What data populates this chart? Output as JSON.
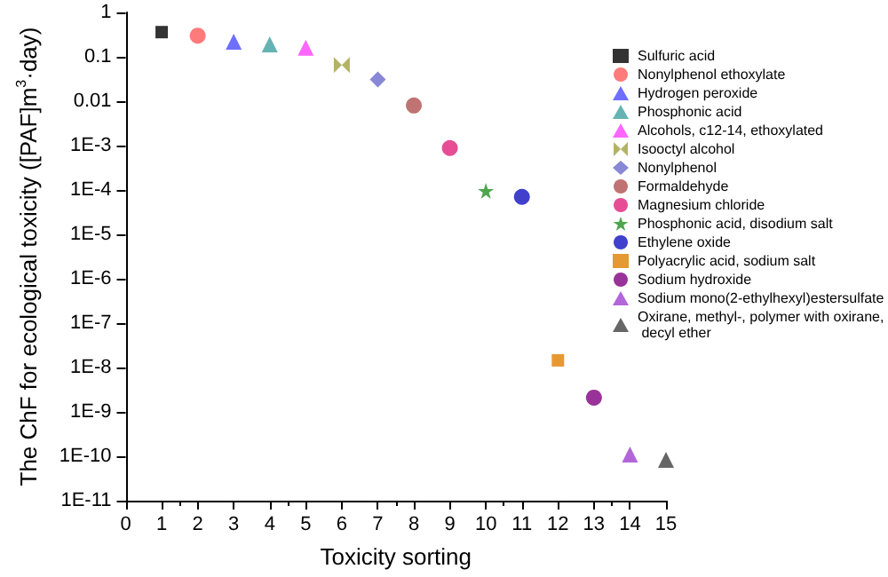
{
  "chart_data": {
    "type": "scatter",
    "xlabel": "Toxicity sorting",
    "ylabel": "The ChF for ecological toxicity ([PAF]m$^{3}$·day)",
    "log": "y",
    "grid": false,
    "legend": "top right",
    "xlim": [
      0,
      15
    ],
    "xticks": [
      0,
      1,
      2,
      3,
      4,
      5,
      6,
      7,
      8,
      9,
      10,
      11,
      12,
      13,
      14,
      15
    ],
    "ylim": [
      1e-11,
      1
    ],
    "yticks": [
      {
        "value": 1e-11,
        "label": "1E-11"
      },
      {
        "value": 1e-10,
        "label": "1E-10"
      },
      {
        "value": 1e-09,
        "label": "1E-9"
      },
      {
        "value": 1e-08,
        "label": "1E-8"
      },
      {
        "value": 1e-07,
        "label": "1E-7"
      },
      {
        "value": 1e-06,
        "label": "1E-6"
      },
      {
        "value": 1e-05,
        "label": "1E-5"
      },
      {
        "value": 0.0001,
        "label": "1E-4"
      },
      {
        "value": 0.001,
        "label": "1E-3"
      },
      {
        "value": 0.01,
        "label": "0.01"
      },
      {
        "value": 0.1,
        "label": "0.1"
      },
      {
        "value": 1,
        "label": "1"
      }
    ],
    "series": [
      {
        "name": "Sulfuric acid",
        "color": "#000000",
        "marker": "square",
        "x": [
          1
        ],
        "values": [
          0.36
        ]
      },
      {
        "name": "Nonylphenol ethoxylate",
        "color": "#ff5a5a",
        "marker": "circle",
        "x": [
          2
        ],
        "values": [
          0.3
        ]
      },
      {
        "name": "Hydrogen peroxide",
        "color": "#4a4aff",
        "marker": "triangle",
        "x": [
          3
        ],
        "values": [
          0.22
        ]
      },
      {
        "name": "Phosphonic acid",
        "color": "#40a0a0",
        "marker": "triangle",
        "x": [
          4
        ],
        "values": [
          0.19
        ]
      },
      {
        "name": "Alcohols, c12-14, ethoxylated",
        "color": "#ff40ff",
        "marker": "triangle",
        "x": [
          5
        ],
        "values": [
          0.16
        ]
      },
      {
        "name": "Isooctyl alcohol",
        "color": "#a0a040",
        "marker": "cross",
        "x": [
          6
        ],
        "values": [
          0.065
        ]
      },
      {
        "name": "Nonylphenol",
        "color": "#6a6acc",
        "marker": "diamond",
        "x": [
          7
        ],
        "values": [
          0.031
        ]
      },
      {
        "name": "Formaldehyde",
        "color": "#b05050",
        "marker": "circle",
        "x": [
          8
        ],
        "values": [
          0.008
        ]
      },
      {
        "name": "Magnesium chloride",
        "color": "#e0207a",
        "marker": "circle",
        "x": [
          9
        ],
        "values": [
          0.00088
        ]
      },
      {
        "name": "Phosphonic acid, disodium salt",
        "color": "#209020",
        "marker": "star",
        "x": [
          10
        ],
        "values": [
          9.5e-05
        ]
      },
      {
        "name": "Ethylene oxide",
        "color": "#1010c0",
        "marker": "circle",
        "x": [
          11
        ],
        "values": [
          7e-05
        ]
      },
      {
        "name": "Polyacrylic acid, sodium salt",
        "color": "#e08000",
        "marker": "square",
        "x": [
          12
        ],
        "values": [
          1.45e-08
        ]
      },
      {
        "name": "Sodium hydroxide",
        "color": "#800080",
        "marker": "circle",
        "x": [
          13
        ],
        "values": [
          2.1e-09
        ]
      },
      {
        "name": "Sodium mono(2-ethylhexyl)estersulfate",
        "color": "#a040d0",
        "marker": "triangle",
        "x": [
          14
        ],
        "values": [
          1.1e-10
        ]
      },
      {
        "name": "Oxirane, methyl-, polymer with oxirane, decyl ether",
        "color": "#404040",
        "marker": "triangle",
        "x": [
          15
        ],
        "values": [
          8.3e-11
        ]
      }
    ]
  }
}
